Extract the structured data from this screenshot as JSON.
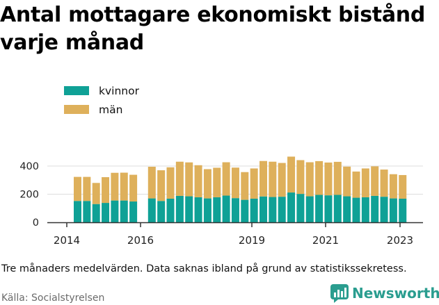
{
  "title": "Antal mottagare ekonomiskt bistånd varje månad",
  "footnote": "Tre månaders medelvärden. Data saknas ibland på grund av statistikssekretess.",
  "source": "Källa: Socialstyrelsen",
  "brand": "Newsworthy",
  "colors": {
    "kvinnor": "#0fa196",
    "man": "#deb05b",
    "grid": "#dddddd",
    "axis": "#333333",
    "brand": "#2a9d8f"
  },
  "chart_data": {
    "type": "bar",
    "stacked": true,
    "x_ticks": [
      "2014",
      "2016",
      "2019",
      "2021",
      "2023"
    ],
    "y_ticks": [
      0,
      200,
      400
    ],
    "ylim": [
      0,
      500
    ],
    "legend_position": "top-left",
    "grid": true,
    "series": [
      {
        "name": "kvinnor",
        "values": [
          152,
          152,
          130,
          138,
          155,
          155,
          148,
          null,
          170,
          152,
          168,
          188,
          185,
          178,
          170,
          178,
          190,
          172,
          160,
          168,
          184,
          180,
          182,
          212,
          202,
          185,
          195,
          192,
          195,
          185,
          175,
          178,
          188,
          182,
          170,
          168
        ]
      },
      {
        "name": "män",
        "values": [
          171,
          171,
          150,
          183,
          197,
          198,
          190,
          null,
          225,
          218,
          223,
          243,
          241,
          228,
          208,
          210,
          237,
          217,
          197,
          215,
          252,
          251,
          240,
          255,
          240,
          242,
          240,
          233,
          235,
          211,
          186,
          205,
          210,
          193,
          172,
          168
        ]
      }
    ]
  }
}
